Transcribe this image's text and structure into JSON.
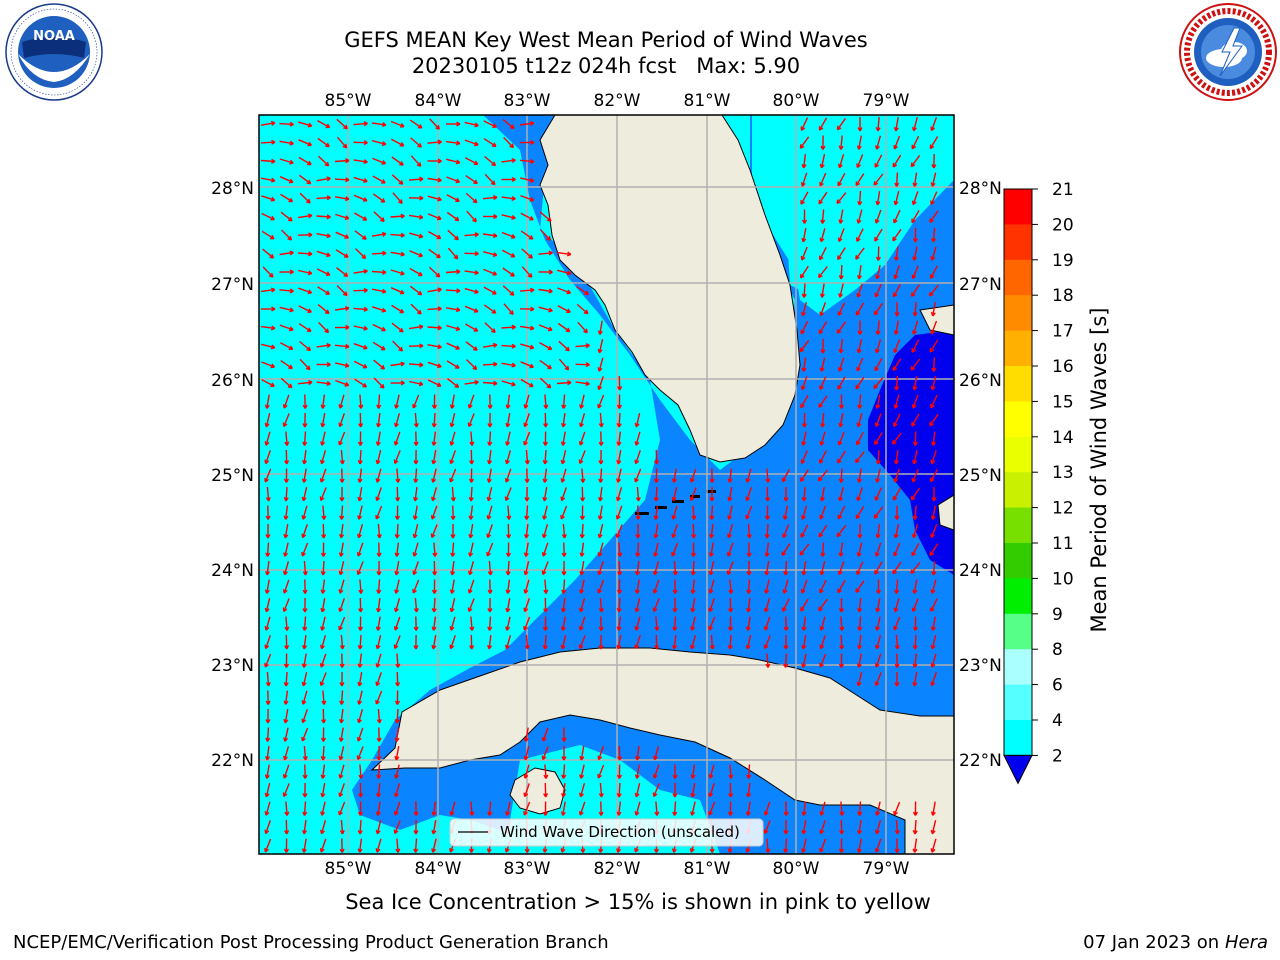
{
  "title_line1": "GEFS MEAN Key West Mean Period of Wind Waves",
  "title_line2": "20230105 t12z 024h fcst   Max: 5.90",
  "logos": {
    "left": "noaa-logo",
    "right": "nws-logo"
  },
  "map": {
    "lon_labels": [
      "85°W",
      "84°W",
      "83°W",
      "82°W",
      "81°W",
      "80°W",
      "79°W"
    ],
    "lat_labels": [
      "28°N",
      "27°N",
      "26°N",
      "25°N",
      "24°N",
      "23°N",
      "22°N"
    ],
    "legend_label": "Wind Wave Direction (unscaled)",
    "colors": {
      "land": "#eeecdc",
      "cyan": "#00ffff",
      "blue": "#0a84ff",
      "dark_blue": "#0000ee",
      "arrow": "#ff0000"
    }
  },
  "colorbar": {
    "label": "Mean Period of Wind Waves [s]",
    "ticks": [
      "21",
      "20",
      "19",
      "18",
      "17",
      "16",
      "15",
      "14",
      "13",
      "12",
      "11",
      "10",
      "9",
      "8",
      "6",
      "4",
      "2"
    ],
    "colors": [
      "#ff0000",
      "#ff3300",
      "#ff6600",
      "#ff8c00",
      "#ffb000",
      "#ffdd00",
      "#ffff00",
      "#eaff00",
      "#c8f000",
      "#78e000",
      "#33cc00",
      "#00ee00",
      "#55ff88",
      "#aaffff",
      "#55ffff",
      "#00ffff",
      "#0a84ff"
    ],
    "extend_color": "#0000ee"
  },
  "seaice_note": "Sea Ice Concentration > 15% is shown in pink to yellow",
  "footer": {
    "left": "NCEP/EMC/Verification Post Processing Product Generation Branch",
    "date": "07 Jan 2023 on ",
    "machine": "Hera"
  }
}
